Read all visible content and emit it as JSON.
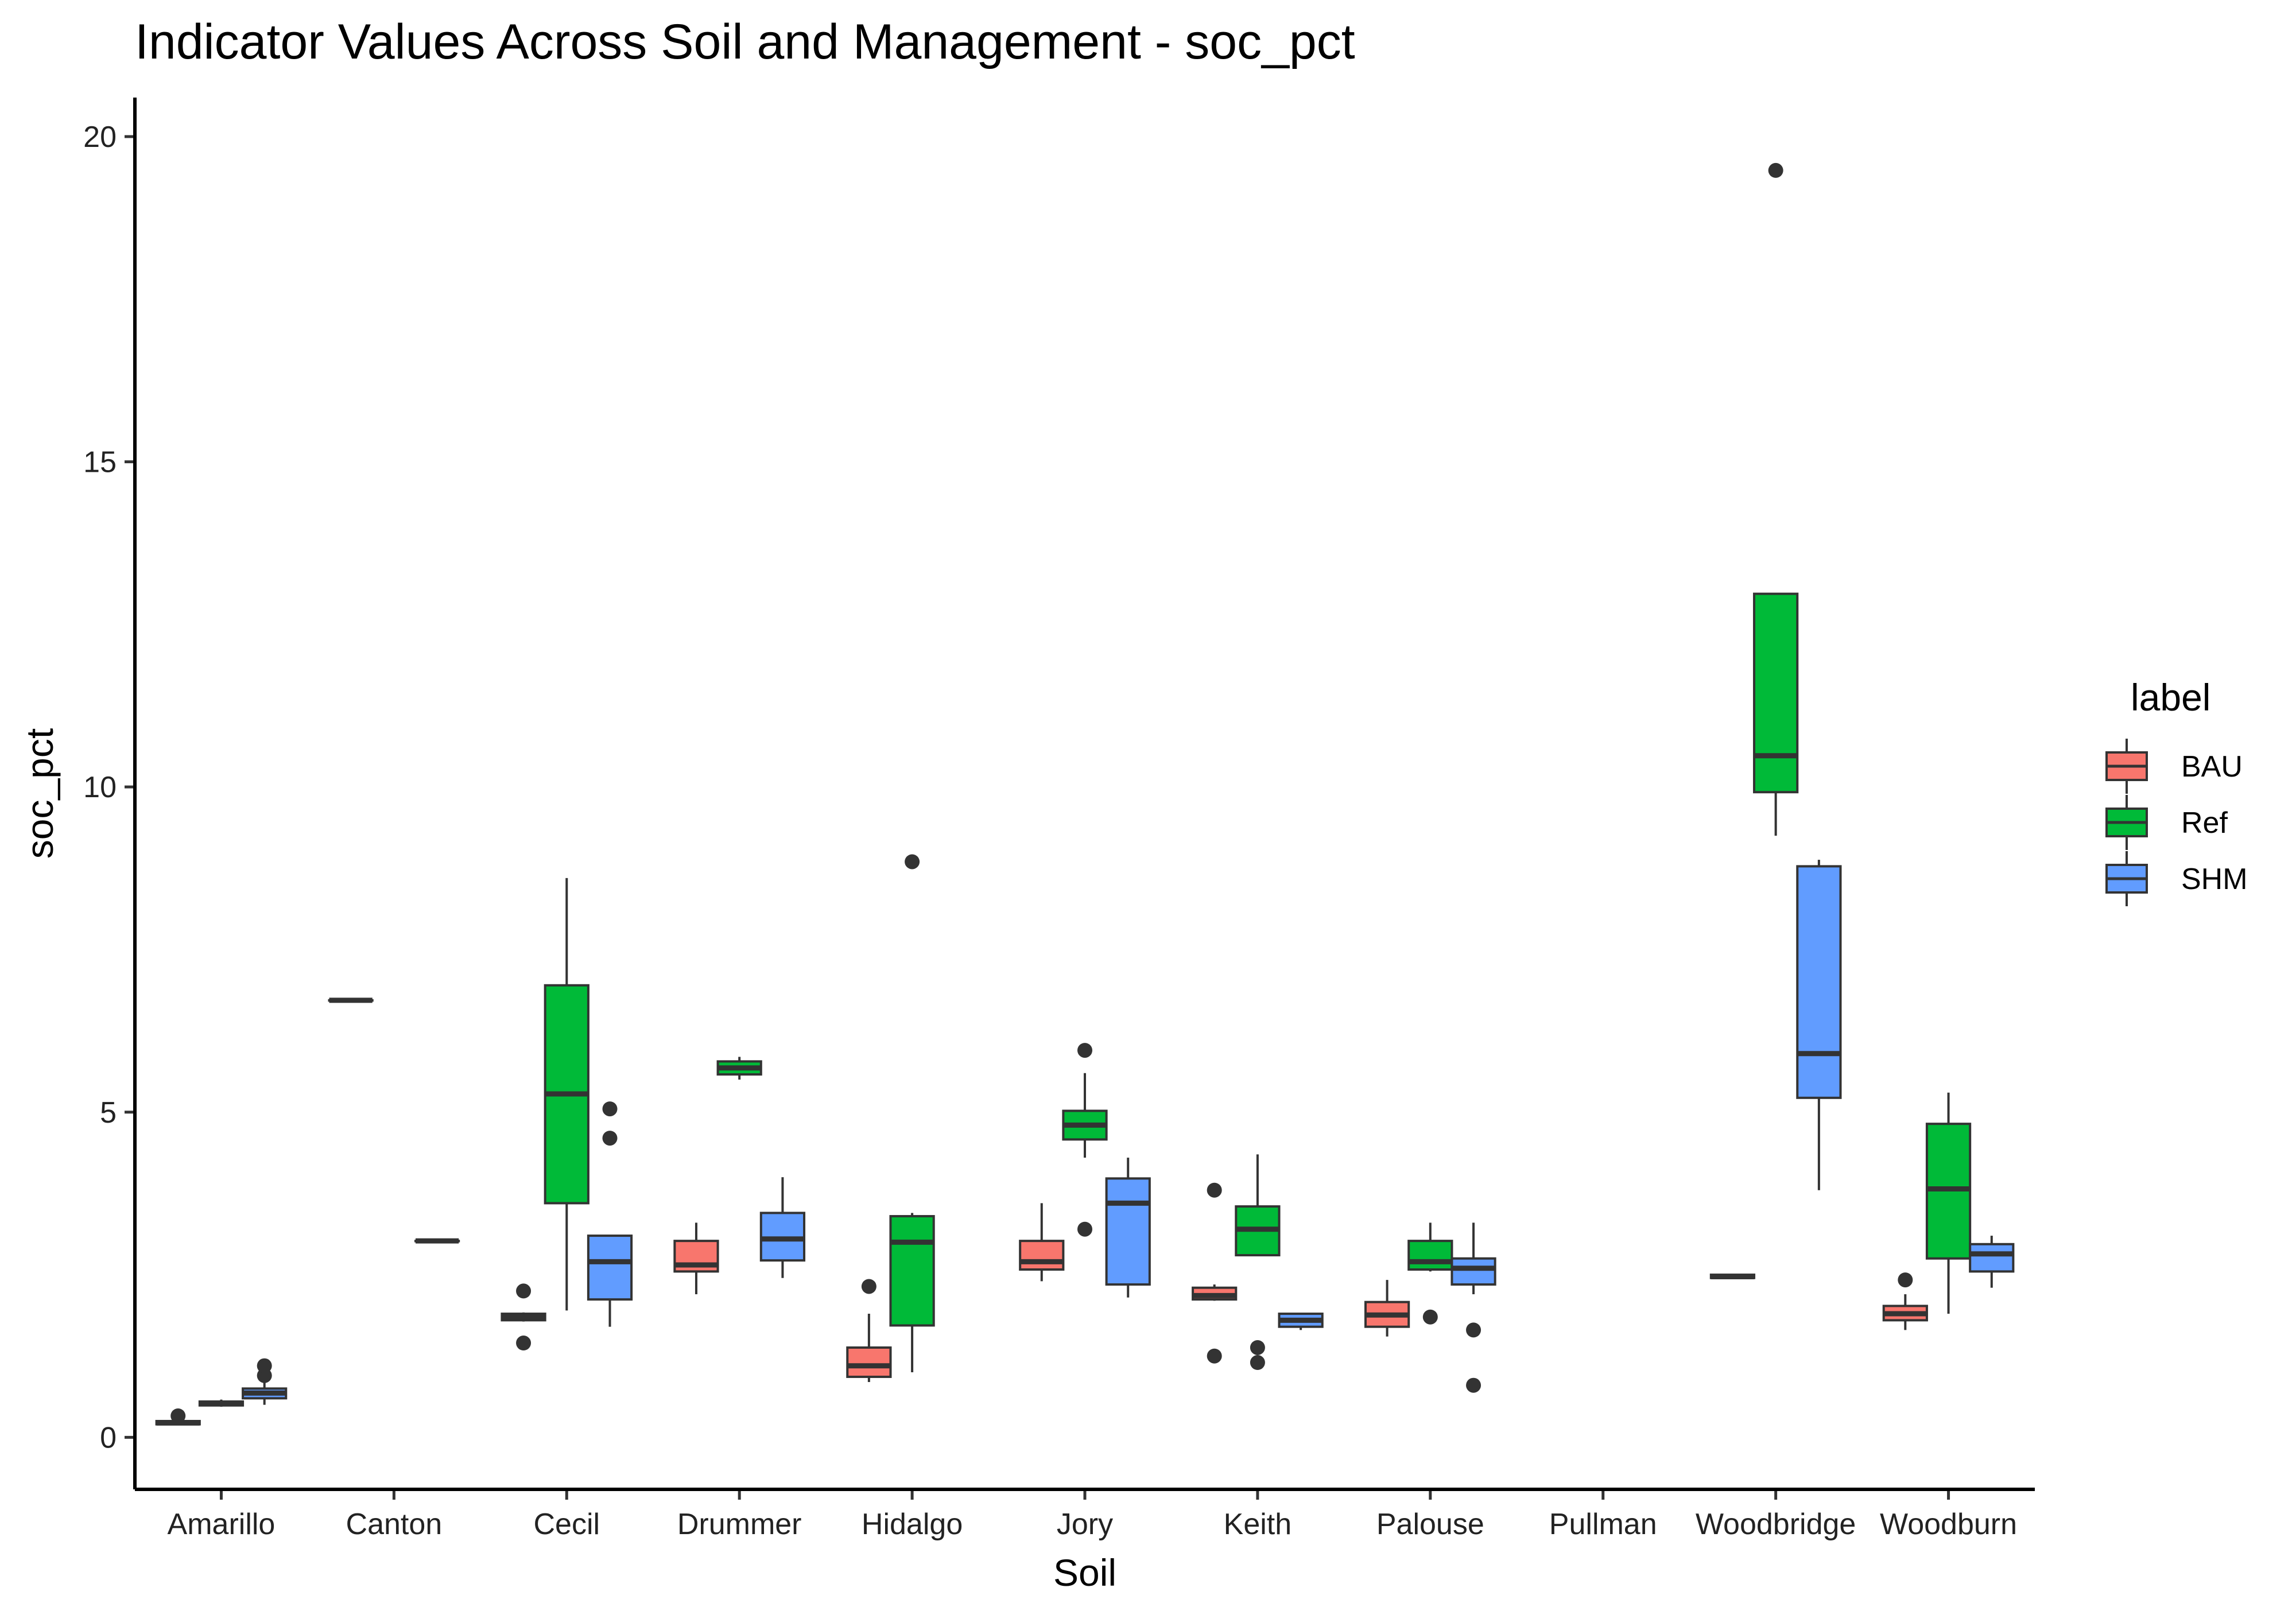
{
  "chart_data": {
    "type": "box",
    "title": "Indicator Values Across Soil and Management - soc_pct",
    "xlabel": "Soil",
    "ylabel": "soc_pct",
    "ylim": [
      -0.8,
      20.6
    ],
    "yticks": [
      0,
      5,
      10,
      15,
      20
    ],
    "grid": false,
    "legend": {
      "title": "label",
      "position": "right",
      "entries": [
        {
          "name": "BAU",
          "color": "#F8766D"
        },
        {
          "name": "Ref",
          "color": "#00BA38"
        },
        {
          "name": "SHM",
          "color": "#619CFF"
        }
      ]
    },
    "categories": [
      "Amarillo",
      "Canton",
      "Cecil",
      "Drummer",
      "Hidalgo",
      "Jory",
      "Keith",
      "Palouse",
      "Pullman",
      "Woodbridge",
      "Woodburn"
    ],
    "boxes": [
      {
        "category": "Amarillo",
        "series": "BAU",
        "whisker_low": 0.2,
        "q1": 0.2,
        "median": 0.22,
        "q3": 0.25,
        "whisker_high": 0.25,
        "outliers": [
          0.33
        ]
      },
      {
        "category": "Amarillo",
        "series": "Ref",
        "whisker_low": 0.47,
        "q1": 0.49,
        "median": 0.52,
        "q3": 0.55,
        "whisker_high": 0.58,
        "outliers": []
      },
      {
        "category": "Amarillo",
        "series": "SHM",
        "whisker_low": 0.5,
        "q1": 0.6,
        "median": 0.68,
        "q3": 0.75,
        "whisker_high": 0.85,
        "outliers": [
          0.95,
          1.1
        ]
      },
      {
        "category": "Canton",
        "series": "BAU",
        "whisker_low": 6.72,
        "q1": 6.72,
        "median": 6.72,
        "q3": 6.72,
        "whisker_high": 6.72,
        "outliers": []
      },
      {
        "category": "Canton",
        "series": "SHM",
        "whisker_low": 3.02,
        "q1": 3.02,
        "median": 3.02,
        "q3": 3.02,
        "whisker_high": 3.02,
        "outliers": []
      },
      {
        "category": "Cecil",
        "series": "BAU",
        "whisker_low": 1.78,
        "q1": 1.8,
        "median": 1.85,
        "q3": 1.9,
        "whisker_high": 1.92,
        "outliers": [
          1.45,
          2.25
        ]
      },
      {
        "category": "Cecil",
        "series": "Ref",
        "whisker_low": 1.95,
        "q1": 3.6,
        "median": 5.28,
        "q3": 6.95,
        "whisker_high": 8.6,
        "outliers": []
      },
      {
        "category": "Cecil",
        "series": "SHM",
        "whisker_low": 1.7,
        "q1": 2.12,
        "median": 2.7,
        "q3": 3.1,
        "whisker_high": 3.1,
        "outliers": [
          4.6,
          5.05
        ]
      },
      {
        "category": "Drummer",
        "series": "BAU",
        "whisker_low": 2.2,
        "q1": 2.55,
        "median": 2.65,
        "q3": 3.02,
        "whisker_high": 3.3,
        "outliers": []
      },
      {
        "category": "Drummer",
        "series": "Ref",
        "whisker_low": 5.5,
        "q1": 5.58,
        "median": 5.68,
        "q3": 5.78,
        "whisker_high": 5.85,
        "outliers": []
      },
      {
        "category": "Drummer",
        "series": "SHM",
        "whisker_low": 2.45,
        "q1": 2.72,
        "median": 3.05,
        "q3": 3.45,
        "whisker_high": 4.0,
        "outliers": []
      },
      {
        "category": "Hidalgo",
        "series": "BAU",
        "whisker_low": 0.85,
        "q1": 0.93,
        "median": 1.1,
        "q3": 1.38,
        "whisker_high": 1.9,
        "outliers": [
          2.32
        ]
      },
      {
        "category": "Hidalgo",
        "series": "Ref",
        "whisker_low": 1.0,
        "q1": 1.72,
        "median": 3.0,
        "q3": 3.4,
        "whisker_high": 3.45,
        "outliers": [
          8.85
        ]
      },
      {
        "category": "Jory",
        "series": "BAU",
        "whisker_low": 2.4,
        "q1": 2.58,
        "median": 2.7,
        "q3": 3.02,
        "whisker_high": 3.6,
        "outliers": []
      },
      {
        "category": "Jory",
        "series": "Ref",
        "whisker_low": 4.3,
        "q1": 4.58,
        "median": 4.8,
        "q3": 5.02,
        "whisker_high": 5.6,
        "outliers": [
          5.95,
          3.2
        ]
      },
      {
        "category": "Jory",
        "series": "SHM",
        "whisker_low": 2.15,
        "q1": 2.35,
        "median": 3.6,
        "q3": 3.98,
        "whisker_high": 4.3,
        "outliers": []
      },
      {
        "category": "Keith",
        "series": "BAU",
        "whisker_low": 2.1,
        "q1": 2.12,
        "median": 2.18,
        "q3": 2.3,
        "whisker_high": 2.35,
        "outliers": [
          3.8,
          1.25
        ]
      },
      {
        "category": "Keith",
        "series": "Ref",
        "whisker_low": 2.8,
        "q1": 2.8,
        "median": 3.2,
        "q3": 3.55,
        "whisker_high": 4.35,
        "outliers": [
          1.38,
          1.15
        ]
      },
      {
        "category": "Keith",
        "series": "SHM",
        "whisker_low": 1.65,
        "q1": 1.7,
        "median": 1.8,
        "q3": 1.9,
        "whisker_high": 1.9,
        "outliers": []
      },
      {
        "category": "Palouse",
        "series": "BAU",
        "whisker_low": 1.55,
        "q1": 1.7,
        "median": 1.88,
        "q3": 2.08,
        "whisker_high": 2.42,
        "outliers": []
      },
      {
        "category": "Palouse",
        "series": "Ref",
        "whisker_low": 2.55,
        "q1": 2.58,
        "median": 2.7,
        "q3": 3.02,
        "whisker_high": 3.3,
        "outliers": [
          1.85
        ]
      },
      {
        "category": "Palouse",
        "series": "SHM",
        "whisker_low": 2.2,
        "q1": 2.35,
        "median": 2.6,
        "q3": 2.75,
        "whisker_high": 3.3,
        "outliers": [
          1.65,
          0.8
        ]
      },
      {
        "category": "Woodbridge",
        "series": "BAU",
        "whisker_low": 2.45,
        "q1": 2.45,
        "median": 2.47,
        "q3": 2.5,
        "whisker_high": 2.5,
        "outliers": []
      },
      {
        "category": "Woodbridge",
        "series": "Ref",
        "whisker_low": 9.25,
        "q1": 9.92,
        "median": 10.48,
        "q3": 12.97,
        "whisker_high": 12.97,
        "outliers": [
          19.48
        ]
      },
      {
        "category": "Woodbridge",
        "series": "SHM",
        "whisker_low": 3.8,
        "q1": 5.22,
        "median": 5.9,
        "q3": 8.78,
        "whisker_high": 8.88,
        "outliers": []
      },
      {
        "category": "Woodburn",
        "series": "BAU",
        "whisker_low": 1.65,
        "q1": 1.8,
        "median": 1.9,
        "q3": 2.02,
        "whisker_high": 2.2,
        "outliers": [
          2.42
        ]
      },
      {
        "category": "Woodburn",
        "series": "Ref",
        "whisker_low": 1.9,
        "q1": 2.75,
        "median": 3.82,
        "q3": 4.82,
        "whisker_high": 5.3,
        "outliers": []
      },
      {
        "category": "Woodburn",
        "series": "SHM",
        "whisker_low": 2.3,
        "q1": 2.55,
        "median": 2.82,
        "q3": 2.97,
        "whisker_high": 3.1,
        "outliers": []
      }
    ]
  }
}
